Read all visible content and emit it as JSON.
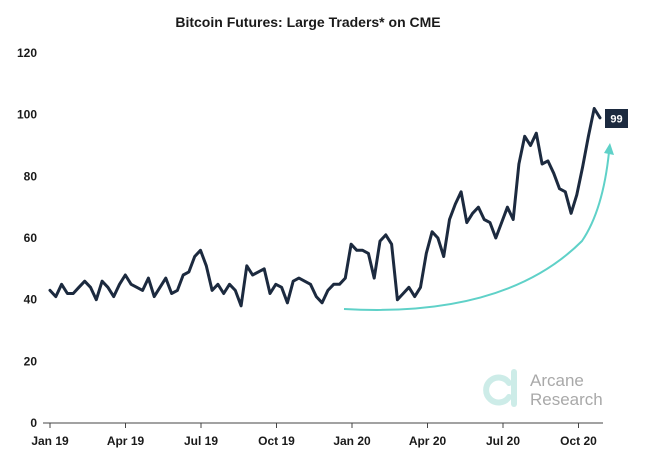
{
  "chart_data": {
    "type": "line",
    "title": "Bitcoin Futures: Large Traders* on CME",
    "xlabel": "",
    "ylabel": "",
    "ylim": [
      0,
      120
    ],
    "yticks": [
      0,
      20,
      40,
      60,
      80,
      100,
      120
    ],
    "xticks": [
      "Jan 19",
      "Apr 19",
      "Jul 19",
      "Oct 19",
      "Jan 20",
      "Apr 20",
      "Jul 20",
      "Oct 20"
    ],
    "grid": false,
    "legend": "none",
    "end_label": "99",
    "colors": {
      "line": "#1c2a3f",
      "arrow": "#5fd1c8",
      "label_bg": "#1c2a3f",
      "watermark": "#a9a9a9",
      "watermark_logo": "#cdece8"
    },
    "series": [
      {
        "values": [
          43,
          41,
          45,
          42,
          42,
          44,
          46,
          44,
          40,
          46,
          44,
          41,
          45,
          48,
          45,
          44,
          43,
          47,
          41,
          44,
          47,
          42,
          43,
          48,
          49,
          54,
          56,
          51,
          43,
          45,
          42,
          45,
          43,
          38,
          51,
          48,
          49,
          50,
          42,
          45,
          44,
          39,
          46,
          47,
          46,
          45,
          41,
          39,
          43,
          45,
          45,
          47,
          58,
          56,
          56,
          55,
          47,
          59,
          61,
          58,
          40,
          42,
          44,
          41,
          44,
          55,
          62,
          60,
          54,
          66,
          71,
          75,
          65,
          68,
          70,
          66,
          65,
          60,
          65,
          70,
          66,
          84,
          93,
          90,
          94,
          84,
          85,
          81,
          76,
          75,
          68,
          74,
          83,
          93,
          102,
          99
        ]
      }
    ]
  },
  "watermark": {
    "line1": "Arcane",
    "line2": "Research",
    "logo_icon": "arcane-logo-icon"
  }
}
